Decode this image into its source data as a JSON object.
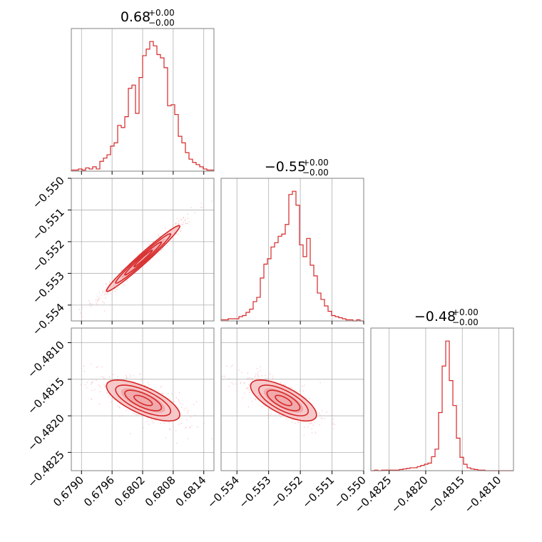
{
  "chart_data": {
    "type": "corner",
    "color": "#d62728",
    "parameters": [
      {
        "title_value": "0.68",
        "title_plus": "+0.00",
        "title_minus": "−0.00",
        "range": [
          0.6788,
          0.6816
        ],
        "ticks": [
          0.679,
          0.6796,
          0.6802,
          0.6808,
          0.6814
        ],
        "tick_labels": [
          "0.6790",
          "0.6796",
          "0.6802",
          "0.6808",
          "0.6814"
        ],
        "mean": 0.68021,
        "sd": 0.00036
      },
      {
        "title_value": "−0.55",
        "title_plus": "+0.00",
        "title_minus": "−0.00",
        "range": [
          -0.5545,
          -0.55
        ],
        "ticks": [
          -0.554,
          -0.553,
          -0.552,
          -0.551,
          -0.55
        ],
        "tick_labels": [
          "−0.554",
          "−0.553",
          "−0.552",
          "−0.551",
          "−0.550"
        ],
        "mean": -0.55253,
        "sd": 0.00052
      },
      {
        "title_value": "−0.48",
        "title_plus": "+0.00",
        "title_minus": "−0.00",
        "range": [
          -0.48275,
          -0.4808
        ],
        "ticks": [
          -0.4825,
          -0.482,
          -0.4815,
          -0.481
        ],
        "tick_labels": [
          "−0.4825",
          "−0.4820",
          "−0.4815",
          "−0.4810"
        ],
        "mean": -0.48179,
        "sd": 0.00014
      }
    ],
    "correlations": {
      "0-1": 0.98,
      "0-2": -0.7,
      "1-2": -0.7
    },
    "histograms": [
      {
        "param": 0,
        "bins": 40,
        "range": [
          0.6788,
          0.6816
        ],
        "counts": [
          1,
          1,
          2,
          1,
          3,
          2,
          4,
          2,
          9,
          12,
          15,
          23,
          26,
          42,
          40,
          50,
          76,
          79,
          53,
          86,
          106,
          112,
          119,
          115,
          107,
          104,
          95,
          60,
          61,
          52,
          32,
          26,
          17,
          11,
          8,
          6,
          4,
          2,
          1,
          1
        ]
      },
      {
        "param": 1,
        "bins": 40,
        "range": [
          -0.5545,
          -0.55
        ],
        "counts": [
          1,
          1,
          2,
          2,
          2,
          4,
          5,
          8,
          11,
          18,
          22,
          40,
          53,
          58,
          69,
          73,
          79,
          81,
          90,
          118,
          121,
          108,
          71,
          60,
          77,
          52,
          42,
          26,
          20,
          14,
          9,
          5,
          4,
          3,
          2,
          1,
          1,
          0,
          1,
          0
        ]
      },
      {
        "param": 2,
        "bins": 40,
        "range": [
          -0.48275,
          -0.4808
        ],
        "counts": [
          0,
          1,
          0,
          1,
          1,
          1,
          1,
          1,
          2,
          3,
          4,
          5,
          5,
          7,
          9,
          11,
          13,
          24,
          37,
          100,
          180,
          223,
          155,
          112,
          56,
          23,
          11,
          5,
          3,
          2,
          1,
          1,
          0,
          0,
          0,
          0,
          0,
          0,
          0,
          0
        ]
      }
    ]
  }
}
